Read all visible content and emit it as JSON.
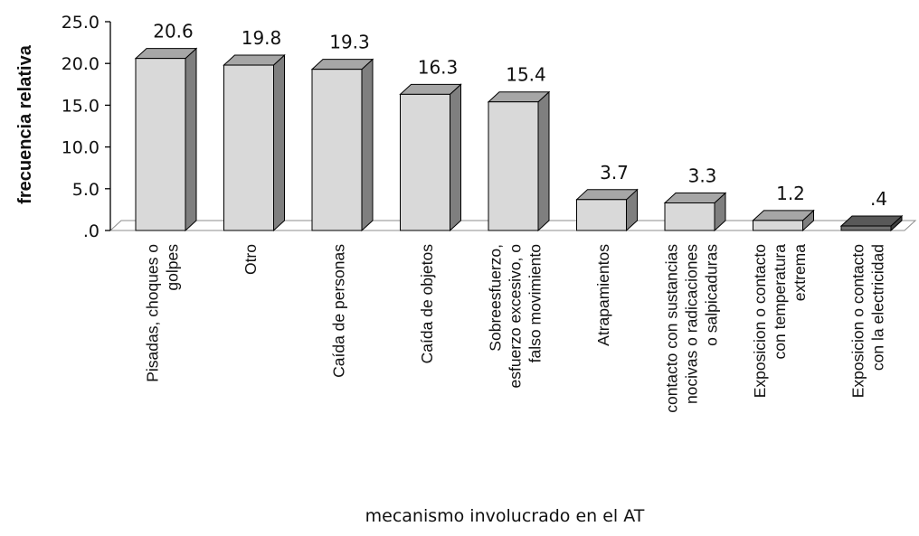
{
  "chart_data": {
    "type": "bar",
    "title": "",
    "xlabel": "mecanismo involucrado en el AT",
    "ylabel": "frecuencia relativa",
    "ylim": [
      0,
      25
    ],
    "yticks": [
      "25.0",
      "20.0",
      "15.0",
      "10.0",
      "5.0",
      ".0"
    ],
    "grid": false,
    "legend": "none",
    "categories": [
      [
        "Pisadas, choques o",
        "golpes"
      ],
      [
        "Otro"
      ],
      [
        "Caída de personas"
      ],
      [
        "Caída de objetos"
      ],
      [
        "Sobreesfuerzo,",
        "esfuerzo excesivo, o",
        "falso movimiento"
      ],
      [
        "Atrapamientos"
      ],
      [
        "contacto con sustancias",
        "nocivas o radicaciones",
        "o salpicaduras"
      ],
      [
        "Exposicion o contacto",
        "con temperatura",
        "extrema"
      ],
      [
        "Exposicion o contacto",
        "con la electricidad"
      ]
    ],
    "values": [
      20.6,
      19.8,
      19.3,
      16.3,
      15.4,
      3.7,
      3.3,
      1.2,
      0.4
    ],
    "value_labels": [
      "20.6",
      "19.8",
      "19.3",
      "16.3",
      "15.4",
      "3.7",
      "3.3",
      "1.2",
      ".4"
    ],
    "colors": {
      "bar_front": "#d9d9d9",
      "bar_top": "#a6a6a6",
      "bar_side": "#7f7f7f",
      "last_bar_front": "#707070",
      "last_bar_top": "#595959",
      "last_bar_side": "#404040",
      "floor": "#ffffff",
      "axis": "#000000"
    }
  }
}
